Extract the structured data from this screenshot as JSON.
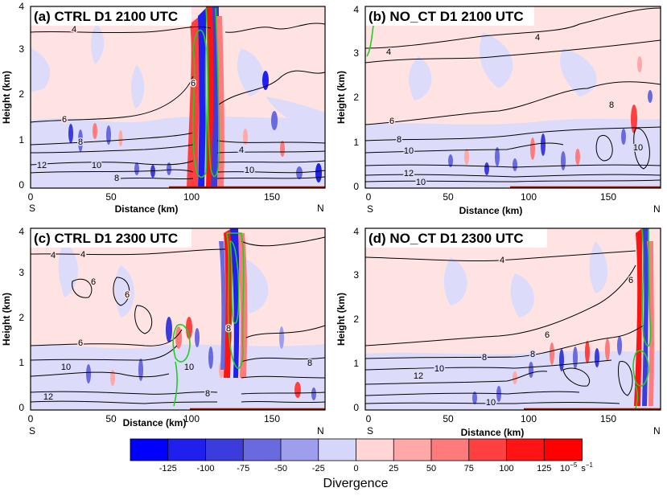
{
  "figure": {
    "colorbar": {
      "levels": [
        "-125",
        "-100",
        "-75",
        "-50",
        "-25",
        "0",
        "25",
        "50",
        "75",
        "100",
        "125"
      ],
      "colors": [
        "#0000ff",
        "#2020ee",
        "#3c3cdd",
        "#6a6ae0",
        "#9e9eef",
        "#d6d6fa",
        "#ffd6d6",
        "#ffa8a8",
        "#ff7a7a",
        "#ff4040",
        "#ff1414",
        "#ff0000"
      ],
      "units_exp": "10",
      "units_pow": "−5",
      "units_tail": "s",
      "units_tail_pow": "−1",
      "label": "Divergence"
    }
  },
  "chart_data": [
    {
      "type": "heatmap",
      "title": "(a) CTRL D1 2100 UTC",
      "xlabel": "Distance (km)",
      "ylabel": "Height (km)",
      "xlim": [
        0,
        180
      ],
      "ylim": [
        0,
        4
      ],
      "xticks": [
        "0",
        "50",
        "100",
        "150"
      ],
      "yticks": [
        "0",
        "1",
        "2",
        "3",
        "4"
      ],
      "x_end_labels": {
        "left": "S",
        "right": "N"
      },
      "contour_labels": [
        "4",
        "6",
        "6",
        "8",
        "10",
        "12",
        "10",
        "8",
        "4"
      ]
    },
    {
      "type": "heatmap",
      "title": "(b) NO_CT D1 2100 UTC",
      "xlabel": "Distance (km)",
      "ylabel": "Height (km)",
      "xlim": [
        0,
        180
      ],
      "ylim": [
        0,
        4
      ],
      "xticks": [
        "0",
        "50",
        "100",
        "150"
      ],
      "yticks": [
        "0",
        "1",
        "2",
        "3",
        "4"
      ],
      "x_end_labels": {
        "left": "S",
        "right": "N"
      },
      "contour_labels": [
        "4",
        "4",
        "6",
        "8",
        "8",
        "10",
        "10",
        "12",
        "10"
      ]
    },
    {
      "type": "heatmap",
      "title": "(c) CTRL D1 2300 UTC",
      "xlabel": "Distance (km)",
      "ylabel": "Height (km)",
      "xlim": [
        0,
        180
      ],
      "ylim": [
        0,
        4
      ],
      "xticks": [
        "0",
        "50",
        "100",
        "150"
      ],
      "yticks": [
        "0",
        "1",
        "2",
        "3",
        "4"
      ],
      "x_end_labels": {
        "left": "S",
        "right": "N"
      },
      "contour_labels": [
        "4",
        "4",
        "6",
        "6",
        "6",
        "8",
        "10",
        "10",
        "8",
        "8",
        "12"
      ]
    },
    {
      "type": "heatmap",
      "title": "(d) NO_CT D1 2300 UTC",
      "xlabel": "Distance (km)",
      "ylabel": "Height (km)",
      "xlim": [
        0,
        180
      ],
      "ylim": [
        0,
        4
      ],
      "xticks": [
        "0",
        "50",
        "100",
        "150"
      ],
      "yticks": [
        "0",
        "1",
        "2",
        "3",
        "4"
      ],
      "x_end_labels": {
        "left": "S",
        "right": "N"
      },
      "contour_labels": [
        "4",
        "6",
        "6",
        "8",
        "8",
        "10",
        "12",
        "10"
      ]
    }
  ]
}
